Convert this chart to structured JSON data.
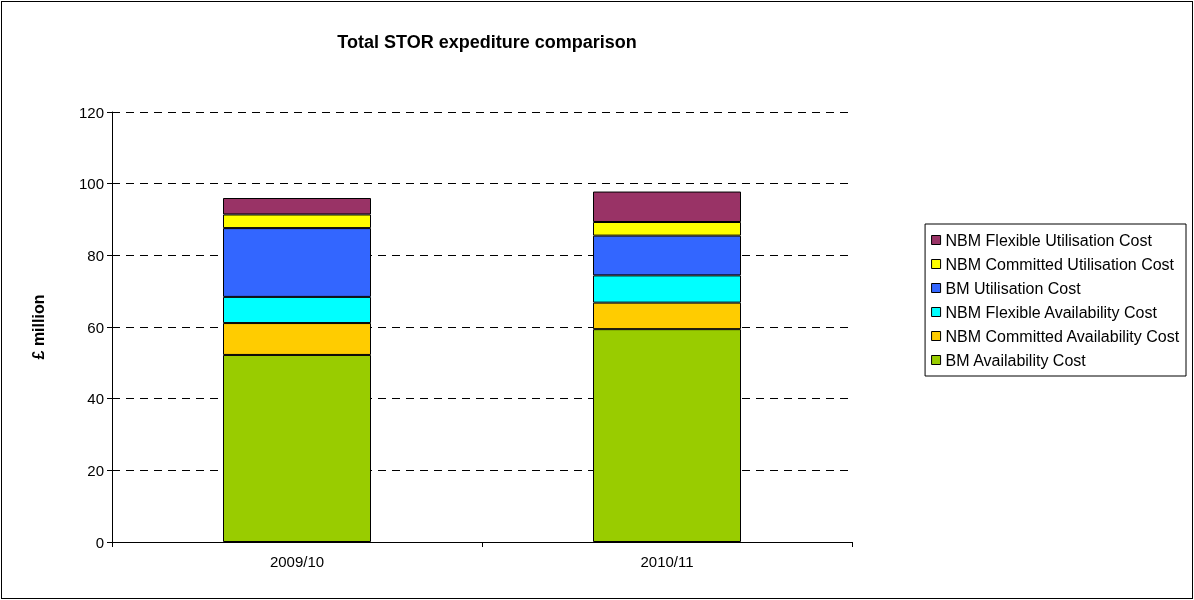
{
  "chart_data": {
    "type": "bar",
    "title": "Total STOR expediture comparison",
    "ylabel": "£ million",
    "categories": [
      "2009/10",
      "2010/11"
    ],
    "stacked": true,
    "ylim": [
      0,
      120
    ],
    "yticks": [
      0,
      20,
      40,
      60,
      80,
      100,
      120
    ],
    "grid": "y",
    "legend": "right",
    "series": [
      {
        "name": "BM Availability Cost",
        "color": "#99cc00",
        "values": [
          52.2,
          59.4
        ]
      },
      {
        "name": "NBM Committed Availability Cost",
        "color": "#ffcc00",
        "values": [
          8.9,
          7.4
        ]
      },
      {
        "name": "NBM Flexible Availability Cost",
        "color": "#00ffff",
        "values": [
          7.3,
          7.6
        ]
      },
      {
        "name": "BM Utilisation Cost",
        "color": "#3366ff",
        "values": [
          19.2,
          11.1
        ]
      },
      {
        "name": "NBM Committed Utilisation Cost",
        "color": "#ffff00",
        "values": [
          3.8,
          3.8
        ]
      },
      {
        "name": "NBM Flexible Utilisation Cost",
        "color": "#993366",
        "values": [
          4.6,
          8.5
        ]
      }
    ]
  }
}
